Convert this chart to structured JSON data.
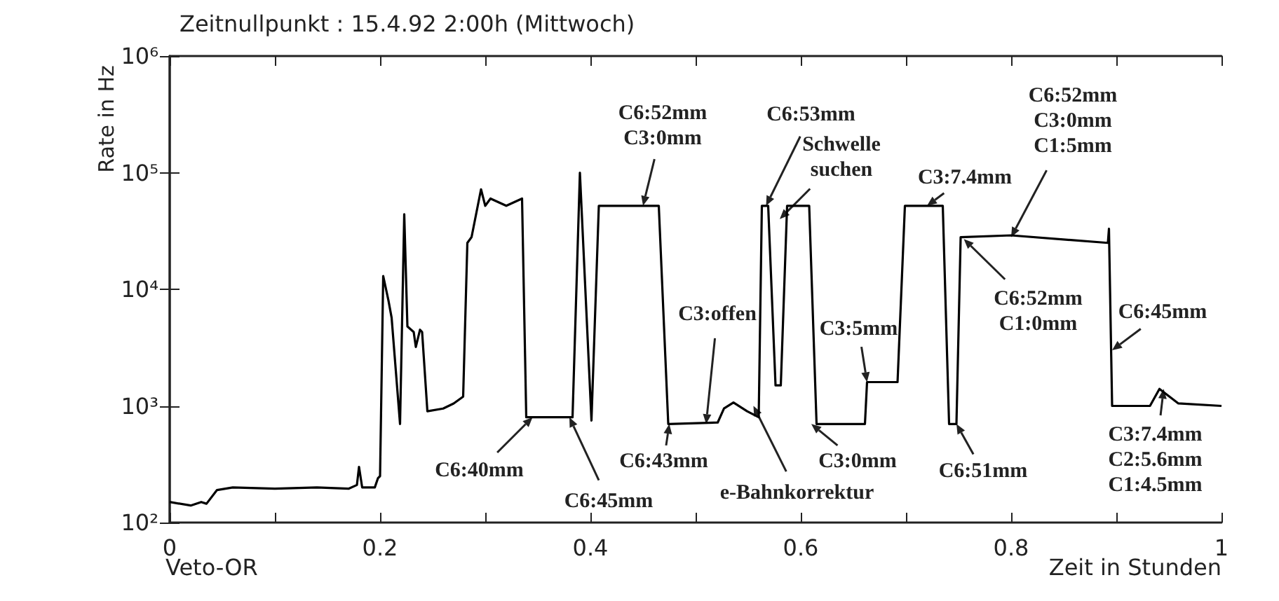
{
  "chart_data": {
    "type": "line",
    "title": "Zeitnullpunkt : 15.4.92 2:00h (Mittwoch)",
    "xlabel": "Zeit in Stunden",
    "ylabel": "Rate in Hz",
    "log": "y",
    "marker": "none",
    "line_style": "solid",
    "xlim": [
      0,
      1
    ],
    "ylim": [
      100,
      1000000
    ],
    "xticks": [
      0,
      {
        "value": 0.1,
        "label": null
      },
      0.2,
      {
        "value": 0.3,
        "label": null
      },
      0.4,
      {
        "value": 0.5,
        "label": null
      },
      0.6,
      {
        "value": 0.7,
        "label": null
      },
      0.8,
      {
        "value": 0.9,
        "label": null
      },
      1
    ],
    "yticks": [
      {
        "value": 100,
        "label": "10²"
      },
      {
        "value": 1000,
        "label": "10³"
      },
      {
        "value": 10000,
        "label": "10⁴"
      },
      {
        "value": 100000,
        "label": "10⁵"
      },
      {
        "value": 1000000,
        "label": "10⁶"
      }
    ],
    "x": [
      0,
      0.02,
      0.03,
      0.035,
      0.045,
      0.06,
      0.1,
      0.14,
      0.17,
      0.178,
      0.18,
      0.183,
      0.195,
      0.198,
      0.2,
      0.203,
      0.208,
      0.211,
      0.219,
      0.223,
      0.226,
      0.232,
      0.234,
      0.238,
      0.24,
      0.245,
      0.26,
      0.27,
      0.279,
      0.283,
      0.287,
      0.296,
      0.3,
      0.305,
      0.32,
      0.335,
      0.339,
      0.383,
      0.39,
      0.401,
      0.408,
      0.465,
      0.474,
      0.521,
      0.527,
      0.536,
      0.549,
      0.56,
      0.563,
      0.569,
      0.576,
      0.581,
      0.587,
      0.608,
      0.615,
      0.661,
      0.663,
      0.692,
      0.699,
      0.735,
      0.741,
      0.748,
      0.752,
      0.8,
      0.892,
      0.893,
      0.896,
      0.932,
      0.941,
      0.959,
      1.0
    ],
    "series": [
      {
        "color": "#000000",
        "values": [
          150,
          140,
          150,
          145,
          190,
          200,
          195,
          200,
          195,
          210,
          300,
          200,
          200,
          240,
          250,
          13000,
          8000,
          5700,
          700,
          44000,
          4800,
          4300,
          3200,
          4500,
          4300,
          900,
          950,
          1050,
          1200,
          25000,
          28000,
          72000,
          52000,
          60000,
          52000,
          60000,
          800,
          800,
          100000,
          750,
          52000,
          52000,
          700,
          720,
          950,
          1070,
          900,
          800,
          52000,
          52000,
          1500,
          1500,
          52000,
          52000,
          700,
          700,
          1600,
          1600,
          52000,
          52000,
          700,
          700,
          28000,
          29000,
          25000,
          33000,
          1000,
          1000,
          1400,
          1050,
          1000
        ]
      }
    ],
    "annotations": [
      "Veto-OR",
      {
        "text": "C6:40mm",
        "x": 0.345,
        "y": 800
      },
      {
        "text": "C6:45mm",
        "x": 0.38,
        "y": 800
      },
      {
        "text": "C6:52mm\nC3:0mm",
        "x": 0.45,
        "y": 52000
      },
      {
        "text": "C3:offen",
        "x": 0.51,
        "y": 700
      },
      {
        "text": "C6:43mm",
        "x": 0.475,
        "y": 700
      },
      {
        "text": "e-Bahnkorrektur",
        "x": 0.555,
        "y": 1000
      },
      {
        "text": "C6:53mm",
        "x": 0.567,
        "y": 52000
      },
      {
        "text": "Schwelle\nsuchen",
        "x": 0.58,
        "y": 40000
      },
      {
        "text": "C3:0mm",
        "x": 0.61,
        "y": 700
      },
      {
        "text": "C3:5mm",
        "x": 0.663,
        "y": 1600
      },
      {
        "text": "C3:7.4mm",
        "x": 0.72,
        "y": 52000
      },
      {
        "text": "C6:52mm\nC3:0mm\nC1:5mm",
        "x": 0.8,
        "y": 28000
      },
      {
        "text": "C6:52mm\nC1:0mm",
        "x": 0.755,
        "y": 27000
      },
      {
        "text": "C6:51mm",
        "x": 0.748,
        "y": 700
      },
      {
        "text": "C6:45mm",
        "x": 0.896,
        "y": 3000
      },
      {
        "text": "C3:7.4mm\nC2:5.6mm\nC1:4.5mm",
        "x": 0.945,
        "y": 1400
      }
    ]
  }
}
